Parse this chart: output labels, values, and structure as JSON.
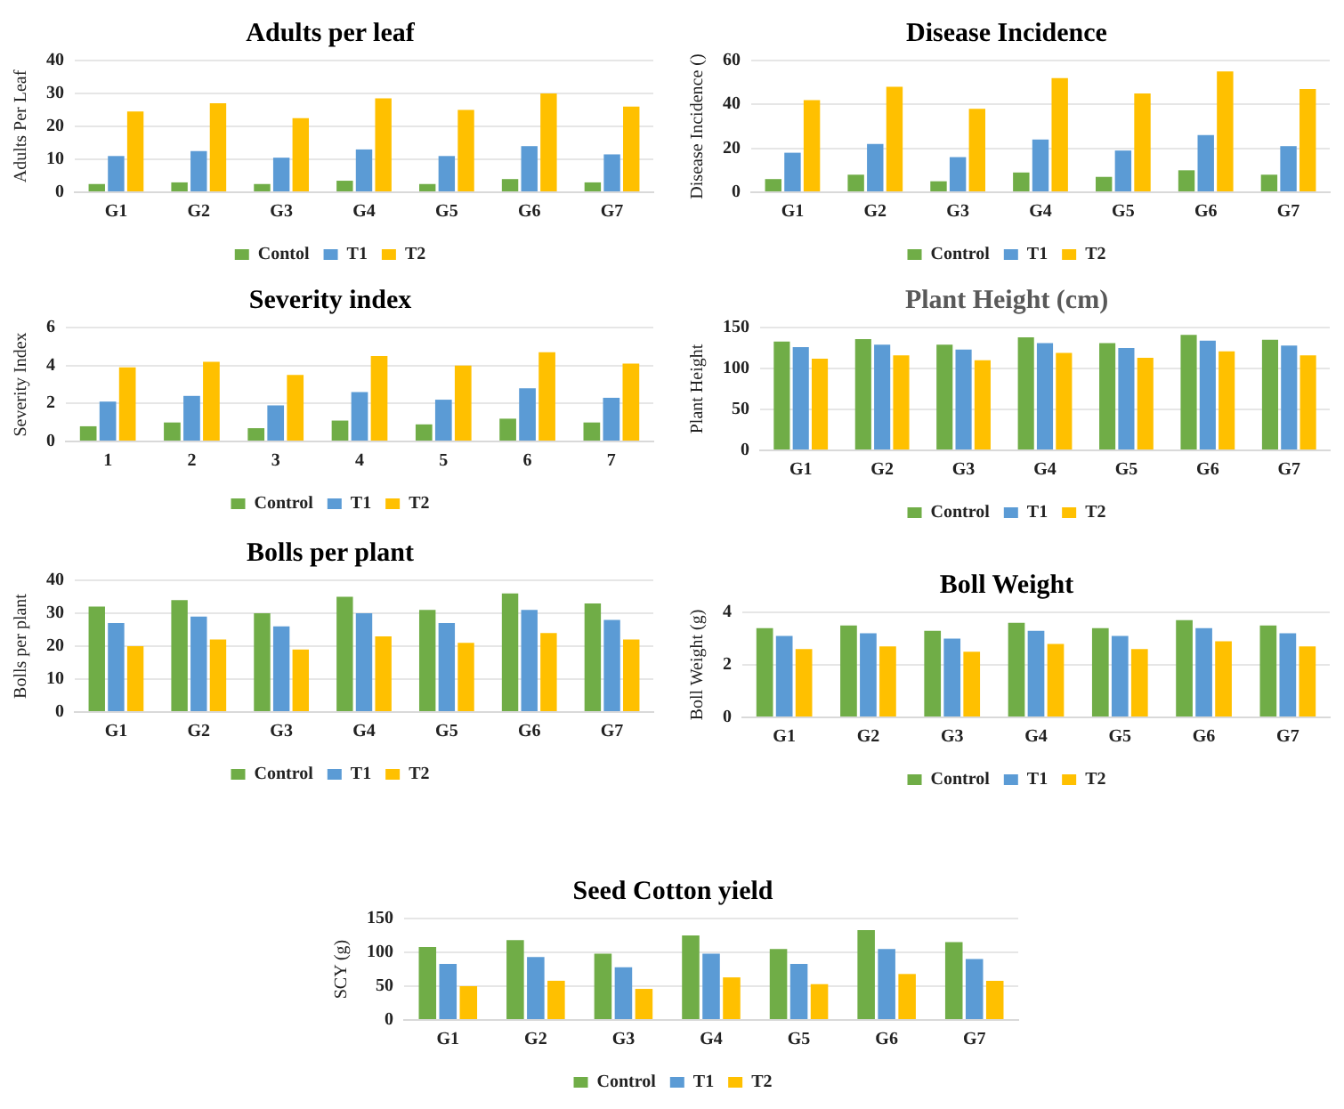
{
  "chart_data": [
    {
      "type": "bar",
      "title": "Adults per leaf",
      "ylabel": "Adults Per Leaf",
      "categories": [
        "G1",
        "G2",
        "G3",
        "G4",
        "G5",
        "G6",
        "G7"
      ],
      "ylim": [
        0,
        40
      ],
      "yticks": [
        0,
        10,
        20,
        30,
        40
      ],
      "grid": "y",
      "legend": "bottom",
      "series": [
        {
          "name": "Contol",
          "color": "#70ad47",
          "values": [
            2.5,
            3,
            2.5,
            3.5,
            2.5,
            4,
            3
          ]
        },
        {
          "name": "T1",
          "color": "#5b9bd5",
          "values": [
            11,
            12.5,
            10.5,
            13,
            11,
            14,
            11.5
          ]
        },
        {
          "name": "T2",
          "color": "#ffc000",
          "values": [
            24.5,
            27,
            22.5,
            28.5,
            25,
            30,
            26
          ]
        }
      ]
    },
    {
      "type": "bar",
      "title": "Disease Incidence",
      "ylabel": "Disease Incidence ()",
      "categories": [
        "G1",
        "G2",
        "G3",
        "G4",
        "G5",
        "G6",
        "G7"
      ],
      "ylim": [
        0,
        60
      ],
      "yticks": [
        0,
        20,
        40,
        60
      ],
      "grid": "y",
      "legend": "bottom",
      "series": [
        {
          "name": "Control",
          "color": "#70ad47",
          "values": [
            6,
            8,
            5,
            9,
            7,
            10,
            8
          ]
        },
        {
          "name": "T1",
          "color": "#5b9bd5",
          "values": [
            18,
            22,
            16,
            24,
            19,
            26,
            21
          ]
        },
        {
          "name": "T2",
          "color": "#ffc000",
          "values": [
            42,
            48,
            38,
            52,
            45,
            55,
            47
          ]
        }
      ]
    },
    {
      "type": "bar",
      "title": "Severity index",
      "ylabel": "Severity Index",
      "categories": [
        "1",
        "2",
        "3",
        "4",
        "5",
        "6",
        "7"
      ],
      "ylim": [
        0,
        6
      ],
      "yticks": [
        0,
        2,
        4,
        6
      ],
      "grid": "y",
      "legend": "bottom",
      "series": [
        {
          "name": "Control",
          "color": "#70ad47",
          "values": [
            0.8,
            1,
            0.7,
            1.1,
            0.9,
            1.2,
            1
          ]
        },
        {
          "name": "T1",
          "color": "#5b9bd5",
          "values": [
            2.1,
            2.4,
            1.9,
            2.6,
            2.2,
            2.8,
            2.3
          ]
        },
        {
          "name": "T2",
          "color": "#ffc000",
          "values": [
            3.9,
            4.2,
            3.5,
            4.5,
            4,
            4.7,
            4.1
          ]
        }
      ]
    },
    {
      "type": "bar",
      "title": "Plant Height (cm)",
      "ylabel": "Plant Height",
      "categories": [
        "G1",
        "G2",
        "G3",
        "G4",
        "G5",
        "G6",
        "G7"
      ],
      "ylim": [
        0,
        150
      ],
      "yticks": [
        0,
        50,
        100,
        150
      ],
      "grid": "y",
      "legend": "bottom",
      "series": [
        {
          "name": "Control",
          "color": "#70ad47",
          "values": [
            133,
            136,
            129,
            138,
            131,
            141,
            135
          ]
        },
        {
          "name": "T1",
          "color": "#5b9bd5",
          "values": [
            126,
            129,
            123,
            131,
            125,
            134,
            128
          ]
        },
        {
          "name": "T2",
          "color": "#ffc000",
          "values": [
            112,
            116,
            110,
            119,
            113,
            121,
            116
          ]
        }
      ]
    },
    {
      "type": "bar",
      "title": "Bolls per plant",
      "ylabel": "Bolls per plant",
      "categories": [
        "G1",
        "G2",
        "G3",
        "G4",
        "G5",
        "G6",
        "G7"
      ],
      "ylim": [
        0,
        40
      ],
      "yticks": [
        0,
        10,
        20,
        30,
        40
      ],
      "grid": "y",
      "legend": "bottom",
      "series": [
        {
          "name": "Control",
          "color": "#70ad47",
          "values": [
            32,
            34,
            30,
            35,
            31,
            36,
            33
          ]
        },
        {
          "name": "T1",
          "color": "#5b9bd5",
          "values": [
            27,
            29,
            26,
            30,
            27,
            31,
            28
          ]
        },
        {
          "name": "T2",
          "color": "#ffc000",
          "values": [
            20,
            22,
            19,
            23,
            21,
            24,
            22
          ]
        }
      ]
    },
    {
      "type": "bar",
      "title": "Boll Weight",
      "ylabel": "Boll Weight (g)",
      "categories": [
        "G1",
        "G2",
        "G3",
        "G4",
        "G5",
        "G6",
        "G7"
      ],
      "ylim": [
        0,
        4
      ],
      "yticks": [
        0,
        2,
        4
      ],
      "grid": "y",
      "legend": "bottom",
      "series": [
        {
          "name": "Control",
          "color": "#70ad47",
          "values": [
            3.4,
            3.5,
            3.3,
            3.6,
            3.4,
            3.7,
            3.5
          ]
        },
        {
          "name": "T1",
          "color": "#5b9bd5",
          "values": [
            3.1,
            3.2,
            3,
            3.3,
            3.1,
            3.4,
            3.2
          ]
        },
        {
          "name": "T2",
          "color": "#ffc000",
          "values": [
            2.6,
            2.7,
            2.5,
            2.8,
            2.6,
            2.9,
            2.7
          ]
        }
      ]
    },
    {
      "type": "bar",
      "title": "Seed Cotton yield",
      "ylabel": "SCY (g)",
      "categories": [
        "G1",
        "G2",
        "G3",
        "G4",
        "G5",
        "G6",
        "G7"
      ],
      "ylim": [
        0,
        150
      ],
      "yticks": [
        0,
        50,
        100,
        150
      ],
      "grid": "y",
      "legend": "bottom",
      "series": [
        {
          "name": "Control",
          "color": "#70ad47",
          "values": [
            108,
            118,
            98,
            125,
            105,
            133,
            115
          ]
        },
        {
          "name": "T1",
          "color": "#5b9bd5",
          "values": [
            83,
            93,
            78,
            98,
            83,
            105,
            90
          ]
        },
        {
          "name": "T2",
          "color": "#ffc000",
          "values": [
            50,
            58,
            46,
            63,
            53,
            68,
            58
          ]
        }
      ]
    }
  ]
}
